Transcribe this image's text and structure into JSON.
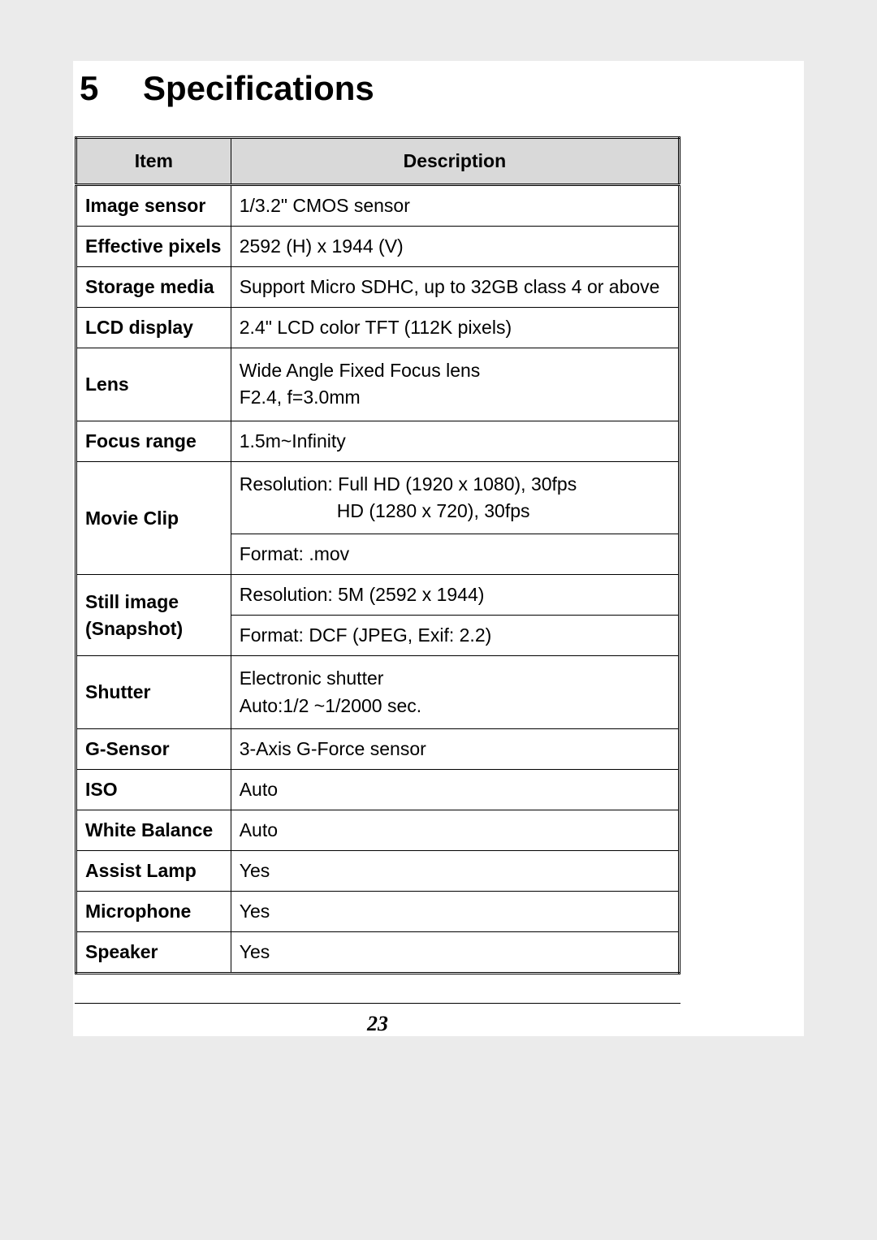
{
  "heading": {
    "number": "5",
    "title": "Specifications"
  },
  "table": {
    "headers": {
      "item": "Item",
      "description": "Description"
    },
    "rows": {
      "image_sensor": {
        "item": "Image sensor",
        "desc": "1/3.2\" CMOS sensor"
      },
      "effective_pixels": {
        "item": "Effective pixels",
        "desc": "2592 (H) x 1944 (V)"
      },
      "storage_media": {
        "item": "Storage media",
        "desc": "Support Micro SDHC, up to 32GB class 4 or above"
      },
      "lcd_display": {
        "item": "LCD display",
        "desc": "2.4\" LCD color TFT (112K pixels)"
      },
      "lens": {
        "item": "Lens",
        "desc_l1": "Wide Angle Fixed Focus lens",
        "desc_l2": "F2.4, f=3.0mm"
      },
      "focus_range": {
        "item": "Focus range",
        "desc": "1.5m~Infinity"
      },
      "movie_clip": {
        "item": "Movie Clip",
        "res_l1": "Resolution: Full HD (1920 x 1080), 30fps",
        "res_l2": "HD (1280 x 720), 30fps",
        "format": "Format: .mov"
      },
      "still_image": {
        "item_l1": "Still image",
        "item_l2": "(Snapshot)",
        "res": "Resolution: 5M (2592 x 1944)",
        "format": "Format: DCF (JPEG, Exif: 2.2)"
      },
      "shutter": {
        "item": "Shutter",
        "desc_l1": "Electronic shutter",
        "desc_l2": "Auto:1/2 ~1/2000 sec."
      },
      "g_sensor": {
        "item": "G-Sensor",
        "desc": "3-Axis G-Force sensor"
      },
      "iso": {
        "item": "ISO",
        "desc": "Auto"
      },
      "white_balance": {
        "item": "White Balance",
        "desc": "Auto"
      },
      "assist_lamp": {
        "item": "Assist Lamp",
        "desc": "Yes"
      },
      "microphone": {
        "item": "Microphone",
        "desc": "Yes"
      },
      "speaker": {
        "item": "Speaker",
        "desc": "Yes"
      }
    }
  },
  "page_number": "23",
  "colors": {
    "page_bg": "#ebebeb",
    "content_bg": "#ffffff",
    "header_bg": "#d9d9d9",
    "border": "#000000",
    "text": "#000000"
  },
  "typography": {
    "heading_fontsize": 42,
    "body_fontsize": 23,
    "pagenum_fontsize": 26
  }
}
